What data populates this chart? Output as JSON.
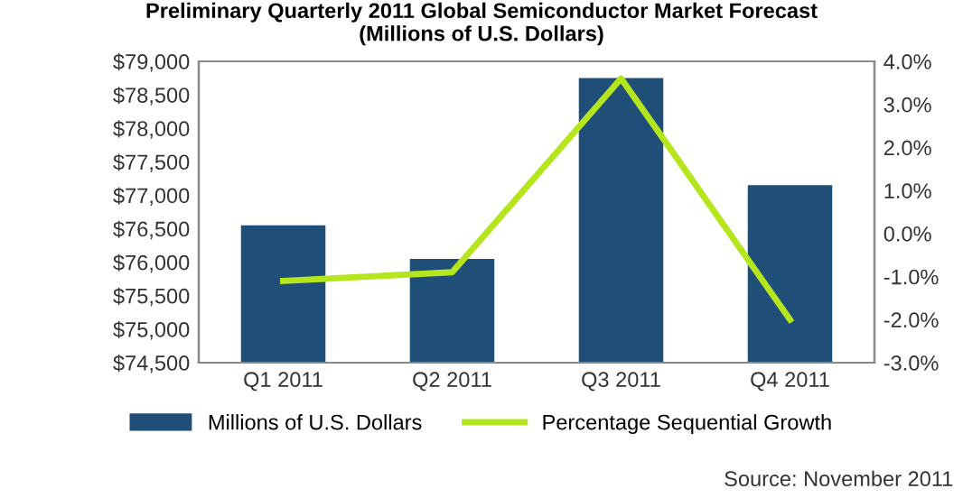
{
  "chart_data": {
    "type": "bar",
    "title": "Preliminary Quarterly 2011 Global Semiconductor Market Forecast\n(Millions of U.S. Dollars)",
    "categories": [
      "Q1 2011",
      "Q2 2011",
      "Q3 2011",
      "Q4 2011"
    ],
    "series": [
      {
        "name": "Millions of U.S. Dollars",
        "color": "#1f4e79",
        "values": [
          76550,
          76050,
          78750,
          77150
        ]
      },
      {
        "name": "Percentage Sequential Growth",
        "type": "line",
        "axis": "y2",
        "color": "#b5e61d",
        "values": [
          -1.1,
          -0.9,
          3.6,
          -2.0
        ]
      }
    ],
    "ylim": [
      74500,
      79000
    ],
    "yticks": [
      {
        "value": 74500,
        "label": "$74,500"
      },
      {
        "value": 75000,
        "label": "$75,000"
      },
      {
        "value": 75500,
        "label": "$75,500"
      },
      {
        "value": 76000,
        "label": "$76,000"
      },
      {
        "value": 76500,
        "label": "$76,500"
      },
      {
        "value": 77000,
        "label": "$77,000"
      },
      {
        "value": 77500,
        "label": "$77,500"
      },
      {
        "value": 78000,
        "label": "$78,000"
      },
      {
        "value": 78500,
        "label": "$78,500"
      },
      {
        "value": 79000,
        "label": "$79,000"
      }
    ],
    "y2lim": [
      -3,
      4
    ],
    "y2ticks": [
      {
        "value": -3,
        "label": "-3.0%"
      },
      {
        "value": -2,
        "label": "-2.0%"
      },
      {
        "value": -1,
        "label": "-1.0%"
      },
      {
        "value": 0,
        "label": "0.0%"
      },
      {
        "value": 1,
        "label": "1.0%"
      },
      {
        "value": 2,
        "label": "2.0%"
      },
      {
        "value": 3,
        "label": "3.0%"
      },
      {
        "value": 4,
        "label": "4.0%"
      }
    ],
    "legend": "bottom",
    "grid": false,
    "marker": "none",
    "annotations": [
      "Source: November 2011"
    ]
  }
}
